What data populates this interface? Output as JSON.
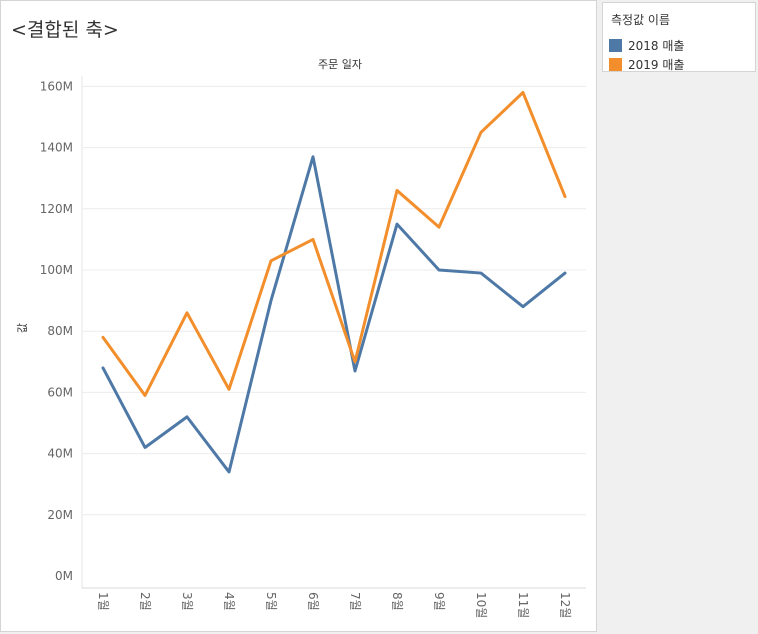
{
  "sheet": {
    "title": "<결합된 축>"
  },
  "legend": {
    "title": "측정값 이름",
    "items": [
      {
        "label": "2018 매출",
        "color": "#4e79a7"
      },
      {
        "label": "2019 매출",
        "color": "#f28e2b"
      }
    ]
  },
  "chart_data": {
    "type": "line",
    "title": "주문 일자",
    "xlabel": "주문 일자",
    "ylabel": "값",
    "categories": [
      "1월",
      "2월",
      "3월",
      "4월",
      "5월",
      "6월",
      "7월",
      "8월",
      "9월",
      "10월",
      "11월",
      "12월"
    ],
    "y_ticks": [
      "0M",
      "20M",
      "40M",
      "60M",
      "80M",
      "100M",
      "120M",
      "140M",
      "160M"
    ],
    "ylim": [
      0,
      168
    ],
    "grid": true,
    "legend_position": "right",
    "series": [
      {
        "name": "2018 매출",
        "color": "#4e79a7",
        "values": [
          68,
          42,
          52,
          34,
          90,
          137,
          67,
          115,
          100,
          99,
          88,
          99
        ]
      },
      {
        "name": "2019 매출",
        "color": "#f28e2b",
        "values": [
          78,
          59,
          86,
          61,
          103,
          110,
          70,
          126,
          114,
          145,
          158,
          124
        ]
      }
    ]
  }
}
